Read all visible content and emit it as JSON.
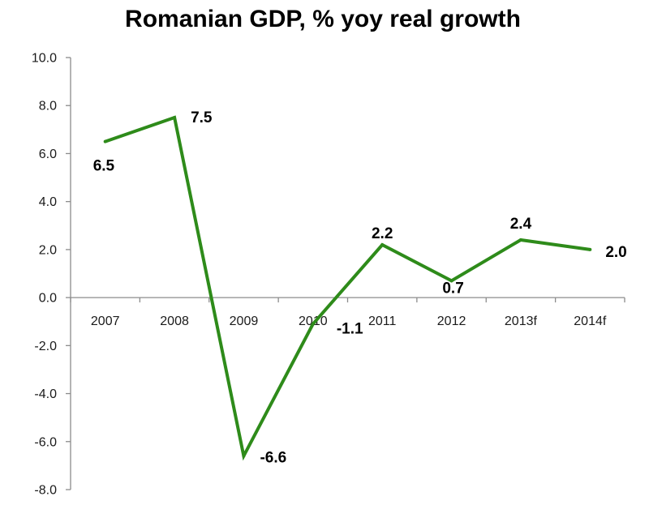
{
  "chart_data": {
    "type": "line",
    "title": "Romanian GDP, % yoy real growth",
    "xlabel": "",
    "ylabel": "",
    "categories": [
      "2007",
      "2008",
      "2009",
      "2010",
      "2011",
      "2012",
      "2013f",
      "2014f"
    ],
    "series": [
      {
        "values": [
          6.5,
          7.5,
          -6.6,
          -1.1,
          2.2,
          0.7,
          2.4,
          2.0
        ],
        "data_labels": [
          "6.5",
          "7.5",
          "-6.6",
          "-1.1",
          "2.2",
          "0.7",
          "2.4",
          "2.0"
        ],
        "color": "#2e8b1a"
      }
    ],
    "ylim": [
      -8.0,
      10.0
    ],
    "y_ticks": [
      "10.0",
      "8.0",
      "6.0",
      "4.0",
      "2.0",
      "0.0",
      "-2.0",
      "-4.0",
      "-6.0",
      "-8.0"
    ],
    "y_tick_values": [
      10,
      8,
      6,
      4,
      2,
      0,
      -2,
      -4,
      -6,
      -8
    ],
    "grid": false,
    "legend": "none",
    "colors": {
      "line": "#2e8b1a",
      "axis": "#8c8c8c",
      "text": "#000000"
    }
  }
}
